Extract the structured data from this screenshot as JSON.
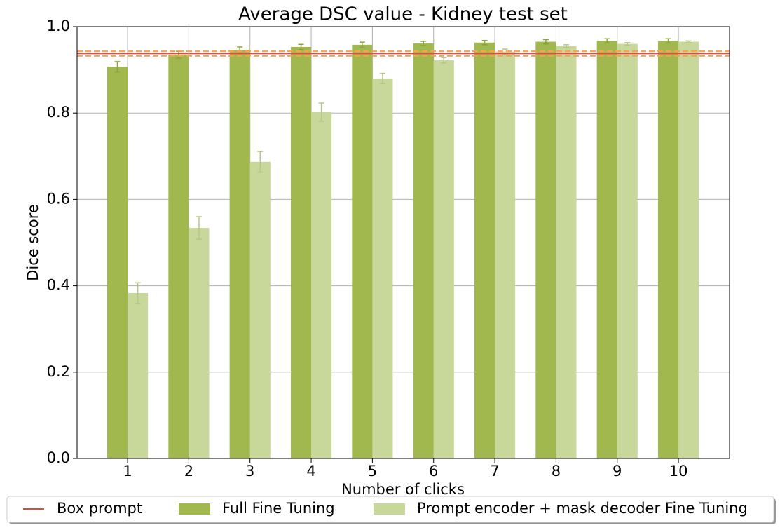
{
  "chart_data": {
    "type": "bar",
    "title": "Average DSC value - Kidney test set",
    "x_label": "Number of clicks",
    "y_label": "Dice score",
    "x": [
      1,
      2,
      3,
      4,
      5,
      6,
      7,
      8,
      9,
      10
    ],
    "xlim": [
      0.175,
      10.835
    ],
    "xticks": [
      1,
      2,
      3,
      4,
      5,
      6,
      7,
      8,
      9,
      10
    ],
    "ylim": [
      0,
      1
    ],
    "yticks": [
      {
        "value": 0,
        "label": "0.0"
      },
      0.2,
      0.4,
      0.6,
      0.8,
      {
        "value": 1,
        "label": "1.0"
      }
    ],
    "grid": true,
    "legend": "bottom",
    "reference_line": {
      "name": "Box prompt",
      "color": "#e8473a",
      "band_color": "#ff9f4a",
      "value": 0.938,
      "lower": 0.932,
      "upper": 0.943
    },
    "series": [
      {
        "name": "Full Fine Tuning",
        "color": "#a1b84e",
        "error_color": "#8ca33a",
        "values": [
          0.907,
          0.935,
          0.946,
          0.953,
          0.958,
          0.961,
          0.963,
          0.965,
          0.967,
          0.967
        ],
        "errors": [
          0.012,
          0.008,
          0.007,
          0.006,
          0.006,
          0.005,
          0.005,
          0.005,
          0.005,
          0.005
        ]
      },
      {
        "name": "Prompt encoder + mask decoder Fine Tuning",
        "color": "#c8d89b",
        "error_color": "#b5c884",
        "values": [
          0.383,
          0.534,
          0.687,
          0.802,
          0.88,
          0.922,
          0.942,
          0.955,
          0.96,
          0.965
        ],
        "errors": [
          0.024,
          0.026,
          0.024,
          0.021,
          0.012,
          0.006,
          0.006,
          0.003,
          0.003,
          0.002
        ]
      }
    ]
  }
}
